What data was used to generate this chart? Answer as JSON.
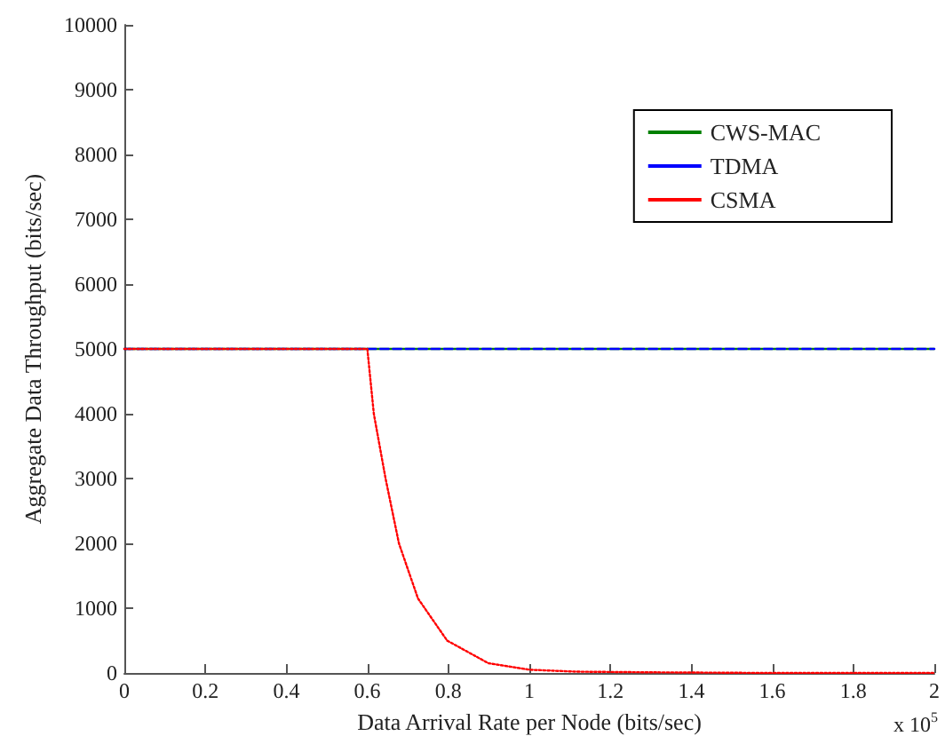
{
  "chart_data": {
    "type": "line",
    "xlabel": "Data Arrival Rate per Node (bits/sec)",
    "ylabel": "Aggregate Data Throughput (bits/sec)",
    "annotations": [
      "x 10$^{5}$"
    ],
    "xlim": [
      0,
      2
    ],
    "xticks": [
      0,
      0.2,
      0.4,
      0.6,
      0.8,
      1,
      1.2,
      1.4,
      1.6,
      1.8,
      2
    ],
    "ylim": [
      0,
      10000
    ],
    "yticks": [
      0,
      1000,
      2000,
      3000,
      4000,
      5000,
      6000,
      7000,
      8000,
      9000,
      10000
    ],
    "grid": false,
    "legend": "top right",
    "marker": "none",
    "series": [
      {
        "name": "CWS-MAC",
        "color": "#008000",
        "line_style": "solid",
        "x": [
          0,
          2
        ],
        "values": [
          5000,
          5000
        ]
      },
      {
        "name": "TDMA",
        "color": "#0000ff",
        "line_style": "dashed",
        "x": [
          0,
          2
        ],
        "values": [
          5000,
          5000
        ]
      },
      {
        "name": "CSMA",
        "color": "#ff0000",
        "line_style": "dotted",
        "x": [
          0,
          0.6,
          0.616,
          0.645,
          0.678,
          0.725,
          0.797,
          0.899,
          1,
          1.116,
          1.3,
          1.6,
          2
        ],
        "values": [
          5000,
          5000,
          4000,
          3000,
          2000,
          1150,
          500,
          150,
          50,
          20,
          10,
          0,
          0
        ]
      }
    ]
  }
}
